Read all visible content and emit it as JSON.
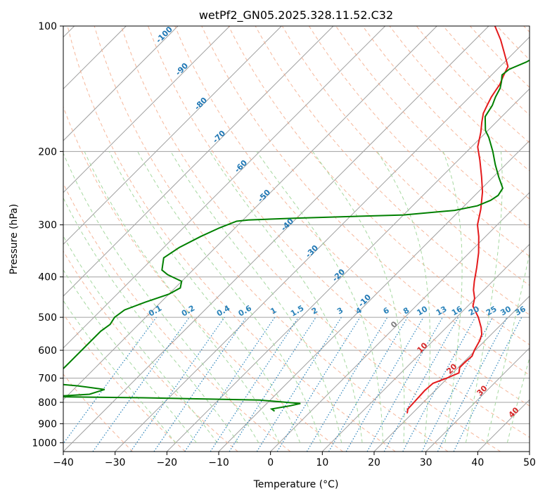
{
  "chart_data": {
    "type": "line",
    "title": "wetPf2_GN05.2025.328.11.52.C32",
    "xlabel": "Temperature (°C)",
    "ylabel": "Pressure (hPa)",
    "xlim": [
      -40,
      50
    ],
    "ylim": [
      1050,
      100
    ],
    "y_scale": "log",
    "grid": true,
    "x_ticks": [
      -40,
      -30,
      -20,
      -10,
      0,
      10,
      20,
      30,
      40,
      50
    ],
    "y_ticks": [
      100,
      200,
      300,
      400,
      500,
      600,
      700,
      800,
      900,
      1000
    ],
    "series": [
      {
        "color": "#e41a1c",
        "temperature": [
          [
            850,
            19.0
          ],
          [
            830,
            18.3
          ],
          [
            800,
            18.2
          ],
          [
            750,
            18.0
          ],
          [
            720,
            18.2
          ],
          [
            700,
            19.8
          ],
          [
            680,
            21.2
          ],
          [
            660,
            20.3
          ],
          [
            640,
            20.3
          ],
          [
            620,
            20.5
          ],
          [
            600,
            19.8
          ],
          [
            570,
            19.0
          ],
          [
            550,
            18.2
          ],
          [
            530,
            16.8
          ],
          [
            500,
            14.2
          ],
          [
            470,
            11.0
          ],
          [
            450,
            9.8
          ],
          [
            430,
            8.0
          ],
          [
            410,
            6.5
          ],
          [
            380,
            4.3
          ],
          [
            350,
            1.8
          ],
          [
            320,
            -1.3
          ],
          [
            300,
            -3.8
          ],
          [
            275,
            -6.2
          ],
          [
            250,
            -9.2
          ],
          [
            230,
            -12.3
          ],
          [
            210,
            -15.8
          ],
          [
            195,
            -18.8
          ],
          [
            180,
            -21.0
          ],
          [
            170,
            -22.8
          ],
          [
            162,
            -24.2
          ],
          [
            155,
            -25.0
          ],
          [
            148,
            -25.8
          ],
          [
            143,
            -26.2
          ],
          [
            138,
            -26.6
          ],
          [
            132,
            -27.5
          ],
          [
            125,
            -28.5
          ],
          [
            115,
            -32.2
          ],
          [
            108,
            -35.0
          ],
          [
            100,
            -38.8
          ]
        ]
      },
      {
        "color": "#008000",
        "dewpoint": [
          [
            840,
            -7.0
          ],
          [
            830,
            -8.0
          ],
          [
            815,
            -5.0
          ],
          [
            805,
            -3.5
          ],
          [
            790,
            -12.0
          ],
          [
            780,
            -35.0
          ],
          [
            775,
            -53.0
          ],
          [
            765,
            -46.0
          ],
          [
            745,
            -44.0
          ],
          [
            730,
            -50.0
          ],
          [
            720,
            -56.0
          ],
          [
            540,
            -56.0
          ],
          [
            520,
            -55.5
          ],
          [
            500,
            -56.0
          ],
          [
            480,
            -55.5
          ],
          [
            460,
            -53.0
          ],
          [
            440,
            -50.0
          ],
          [
            425,
            -49.0
          ],
          [
            410,
            -50.0
          ],
          [
            395,
            -54.0
          ],
          [
            385,
            -56.0
          ],
          [
            360,
            -58.0
          ],
          [
            340,
            -57.0
          ],
          [
            320,
            -55.0
          ],
          [
            305,
            -53.0
          ],
          [
            294,
            -51.0
          ],
          [
            292,
            -49.0
          ],
          [
            289,
            -40.0
          ],
          [
            284,
            -20.0
          ],
          [
            277,
            -11.0
          ],
          [
            270,
            -7.5
          ],
          [
            262,
            -6.0
          ],
          [
            255,
            -5.5
          ],
          [
            245,
            -6.0
          ],
          [
            230,
            -9.0
          ],
          [
            215,
            -12.0
          ],
          [
            200,
            -15.0
          ],
          [
            185,
            -18.5
          ],
          [
            178,
            -20.5
          ],
          [
            165,
            -23.2
          ],
          [
            155,
            -24.0
          ],
          [
            148,
            -25.0
          ],
          [
            141,
            -25.8
          ],
          [
            136,
            -26.8
          ],
          [
            131,
            -28.0
          ],
          [
            127,
            -27.7
          ],
          [
            122,
            -25.8
          ],
          [
            115,
            -24.2
          ],
          [
            108,
            -23.5
          ],
          [
            100,
            -22.8
          ]
        ]
      }
    ],
    "isotherms_skew_labels": {
      "dry_adiabat_labels": [
        "-100",
        "-90",
        "-80",
        "-70",
        "-60",
        "-50",
        "-40",
        "-30",
        "-20",
        "-10",
        "0",
        "10",
        "20",
        "30",
        "40"
      ],
      "mixing_ratio_labels": [
        "0.1",
        "0.2",
        "0.4",
        "0.6",
        "1",
        "1.5",
        "2",
        "3",
        "4",
        "6",
        "8",
        "10",
        "13",
        "16",
        "20",
        "25",
        "30",
        "36"
      ]
    },
    "colors": {
      "temperature": "#e41a1c",
      "dewpoint": "#008000",
      "isotherm": "#a0a0a0",
      "dry_adiabat": "#f4a582",
      "moist_adiabat": "#a6d8a0",
      "mixing_ratio": "#2b83ba",
      "label_cold": "#1f77b4",
      "label_warm": "#d62728"
    }
  }
}
